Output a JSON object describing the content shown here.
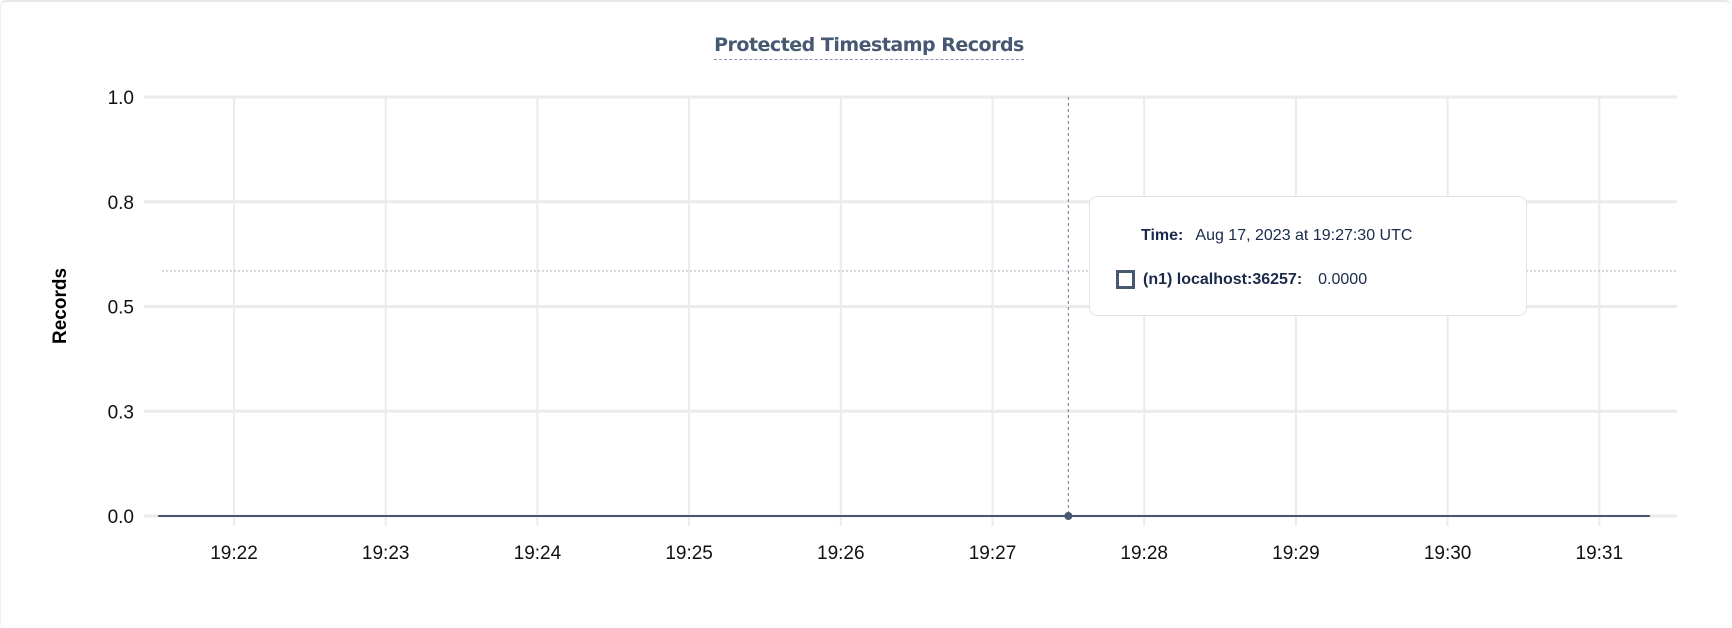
{
  "chart_data": {
    "type": "line",
    "title": "Protected Timestamp Records",
    "xlabel": "",
    "ylabel": "Records",
    "ylim": [
      0,
      1
    ],
    "yticks": [
      "1.0",
      "0.8",
      "0.5",
      "0.3",
      "0.0"
    ],
    "xticks": [
      "19:22",
      "19:23",
      "19:24",
      "19:25",
      "19:26",
      "19:27",
      "19:28",
      "19:29",
      "19:30",
      "19:31"
    ],
    "xlim": [
      "19:21:30",
      "19:31:20"
    ],
    "grid": true,
    "series": [
      {
        "name": "(n1) localhost:36257",
        "color": "#475872",
        "x": [
          "19:21:30",
          "19:27:30",
          "19:31:20"
        ],
        "values": [
          0,
          0,
          0
        ]
      }
    ],
    "hover": {
      "x": "19:27:30",
      "value": 0
    }
  },
  "tooltip": {
    "time_label": "Time:",
    "time_value": "Aug 17, 2023 at 19:27:30 UTC",
    "series_label": "(n1) localhost:36257:",
    "series_value": "0.0000"
  }
}
